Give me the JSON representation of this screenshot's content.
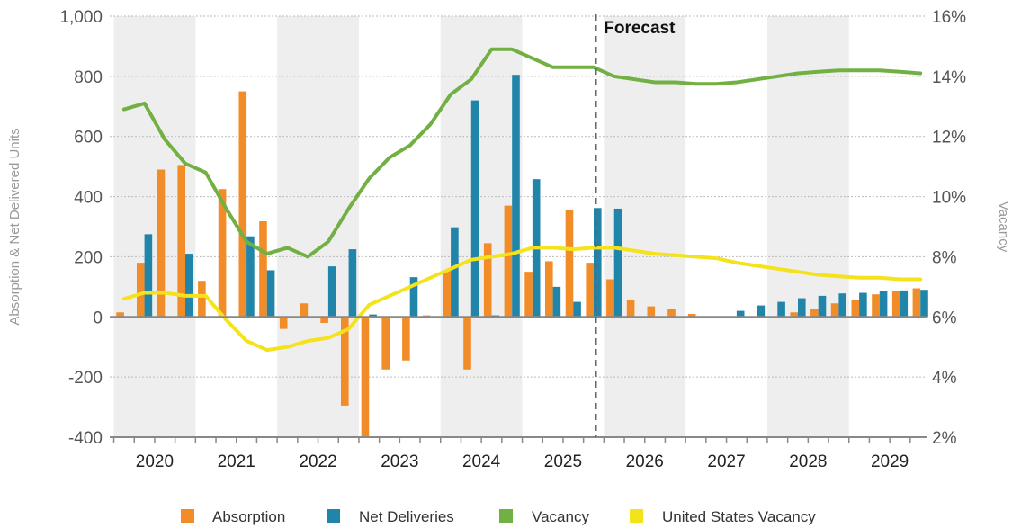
{
  "chart_data": {
    "type": "bar+line",
    "y_left": {
      "label": "Absorption & Net Delivered Units",
      "ylim": [
        -400,
        1000
      ],
      "ticks": [
        "1,000",
        "800",
        "600",
        "400",
        "200",
        "0",
        "-200",
        "-400"
      ],
      "tick_values": [
        1000,
        800,
        600,
        400,
        200,
        0,
        -200,
        -400
      ]
    },
    "y_right": {
      "label": "Vacancy",
      "ylim": [
        2,
        16
      ],
      "ticks": [
        "16%",
        "14%",
        "12%",
        "10%",
        "8%",
        "6%",
        "4%",
        "2%"
      ],
      "tick_values": [
        16,
        14,
        12,
        10,
        8,
        6,
        4,
        2
      ]
    },
    "years": [
      "2020",
      "2021",
      "2022",
      "2023",
      "2024",
      "2025",
      "2026",
      "2027",
      "2028",
      "2029"
    ],
    "x_range": [
      2019.45,
      2029.45
    ],
    "annotation": {
      "text": "Forecast",
      "x": 2025.4
    },
    "colors": {
      "absorption": "#F28C28",
      "net_deliveries": "#2185A9",
      "vacancy": "#72B043",
      "us_vacancy": "#F4E31C",
      "shade": "#EEEEEE",
      "grid": "#BBBBBB",
      "forecast_line": "#666666"
    },
    "quarters": [
      "2019Q3",
      "2019Q4",
      "2020Q1",
      "2020Q2",
      "2020Q3",
      "2020Q4",
      "2021Q1",
      "2021Q2",
      "2021Q3",
      "2021Q4",
      "2022Q1",
      "2022Q2",
      "2022Q3",
      "2022Q4",
      "2023Q1",
      "2023Q2",
      "2023Q3",
      "2023Q4",
      "2024Q1",
      "2024Q2",
      "2024Q3",
      "2024Q4",
      "2025Q1",
      "2025Q2",
      "2025Q3",
      "2025Q4",
      "2026Q1",
      "2026Q2",
      "2026Q3",
      "2026Q4",
      "2027Q1",
      "2027Q2",
      "2027Q3",
      "2027Q4",
      "2028Q1",
      "2028Q2",
      "2028Q3",
      "2028Q4",
      "2029Q1",
      "2029Q2"
    ],
    "series": [
      {
        "name": "Absorption",
        "kind": "bar",
        "values": [
          15,
          180,
          490,
          505,
          120,
          425,
          750,
          318,
          -40,
          45,
          -20,
          -295,
          -410,
          -175,
          -145,
          5,
          155,
          -175,
          245,
          370,
          150,
          185,
          355,
          180,
          125,
          55,
          35,
          25,
          10,
          0,
          0,
          0,
          0,
          15,
          25,
          45,
          55,
          75,
          85,
          95
        ]
      },
      {
        "name": "Net Deliveries",
        "kind": "bar",
        "values": [
          0,
          275,
          0,
          210,
          0,
          0,
          268,
          155,
          0,
          0,
          168,
          225,
          8,
          0,
          132,
          0,
          298,
          720,
          5,
          805,
          458,
          100,
          50,
          362,
          360,
          0,
          0,
          0,
          0,
          0,
          20,
          38,
          50,
          62,
          70,
          78,
          80,
          85,
          88,
          90
        ]
      },
      {
        "name": "Vacancy",
        "kind": "line",
        "values": [
          12.9,
          13.1,
          11.9,
          11.1,
          10.8,
          9.6,
          8.5,
          8.1,
          8.3,
          8.0,
          8.5,
          9.6,
          10.6,
          11.3,
          11.7,
          12.4,
          13.4,
          13.9,
          14.9,
          14.9,
          14.6,
          14.3,
          14.3,
          14.3,
          14.0,
          13.9,
          13.8,
          13.8,
          13.75,
          13.75,
          13.8,
          13.9,
          14.0,
          14.1,
          14.15,
          14.2,
          14.2,
          14.2,
          14.15,
          14.1
        ]
      },
      {
        "name": "United States Vacancy",
        "kind": "line",
        "values": [
          6.6,
          6.8,
          6.8,
          6.7,
          6.7,
          5.9,
          5.2,
          4.9,
          5.0,
          5.2,
          5.3,
          5.6,
          6.4,
          6.7,
          7.0,
          7.3,
          7.6,
          7.9,
          8.0,
          8.1,
          8.3,
          8.3,
          8.25,
          8.3,
          8.3,
          8.2,
          8.1,
          8.05,
          8.0,
          7.95,
          7.8,
          7.7,
          7.6,
          7.5,
          7.4,
          7.35,
          7.3,
          7.3,
          7.25,
          7.25
        ]
      }
    ]
  },
  "legend": [
    {
      "label": "Absorption",
      "color": "#F28C28"
    },
    {
      "label": "Net Deliveries",
      "color": "#2185A9"
    },
    {
      "label": "Vacancy",
      "color": "#72B043"
    },
    {
      "label": "United States Vacancy",
      "color": "#F4E31C"
    }
  ]
}
